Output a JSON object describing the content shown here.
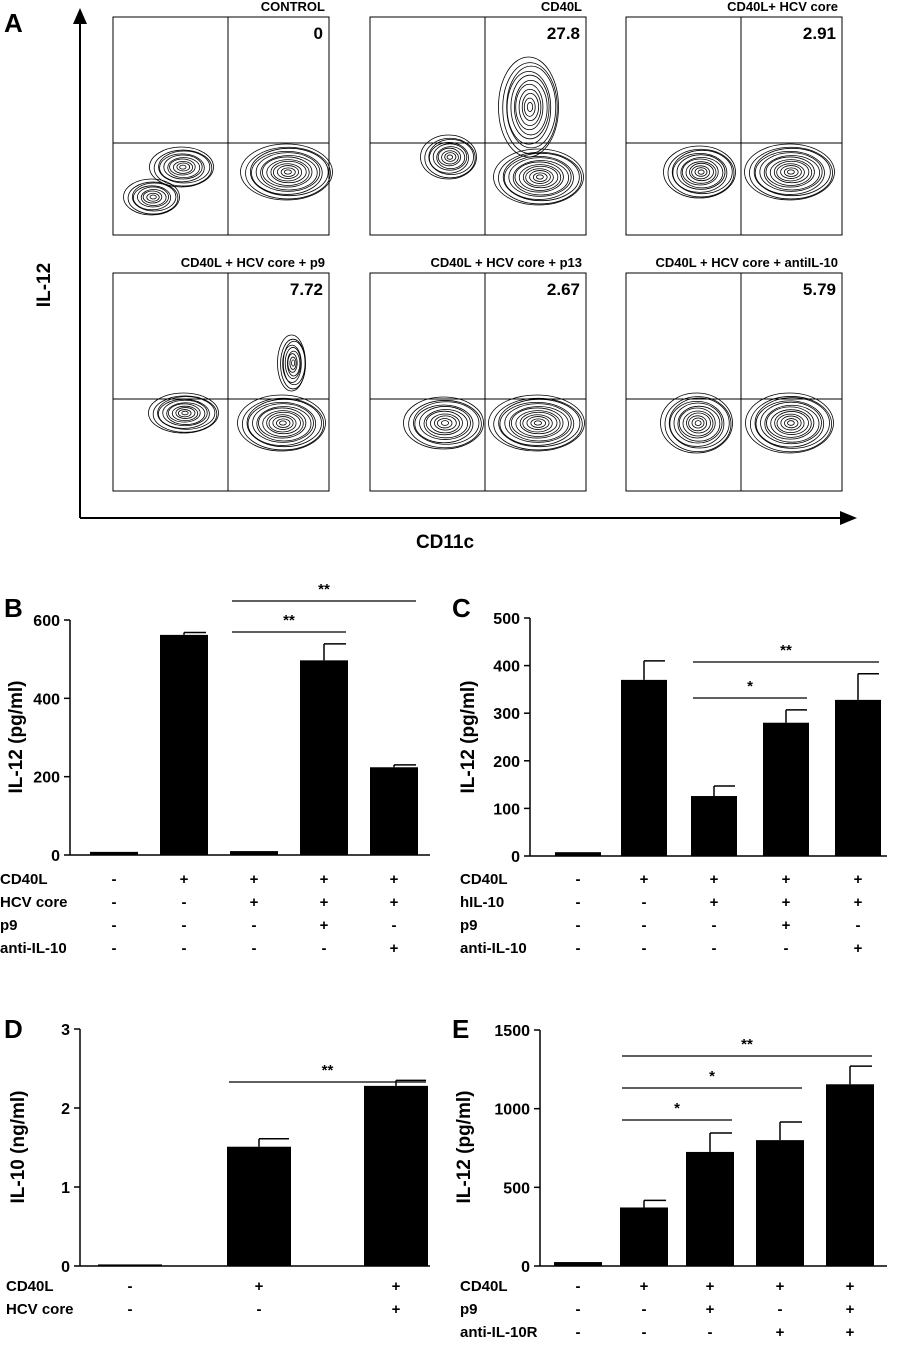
{
  "panel_letters": {
    "a": "A",
    "b": "B",
    "c": "C",
    "d": "D",
    "e": "E"
  },
  "colors": {
    "ink": "#000000",
    "background": "#ffffff"
  },
  "chart_data": [
    {
      "id": "A",
      "type": "scatter",
      "subtype": "flow cytometry contour plots",
      "xlabel": "CD11c",
      "ylabel": "IL-12",
      "plots": [
        {
          "title": "CONTROL",
          "value": "0"
        },
        {
          "title": "CD40L",
          "value": "27.8"
        },
        {
          "title": "CD40L+ HCV core",
          "value": "2.91"
        },
        {
          "title": "CD40L + HCV core + p9",
          "value": "7.72"
        },
        {
          "title": "CD40L + HCV core + p13",
          "value": "2.67"
        },
        {
          "title": "CD40L + HCV core + antiIL-10",
          "value": "5.79"
        }
      ]
    },
    {
      "id": "B",
      "type": "bar",
      "ylabel": "IL-12 (pg/ml)",
      "ylim": [
        0,
        600
      ],
      "yticks": [
        "0",
        "200",
        "400",
        "600"
      ],
      "values": [
        8,
        562,
        10,
        497,
        224
      ],
      "errors": [
        1,
        6,
        1,
        42,
        6
      ],
      "conditions": [
        {
          "label": "CD40L",
          "signs": [
            "-",
            "+",
            "+",
            "+",
            "+"
          ]
        },
        {
          "label": "HCV core",
          "signs": [
            "-",
            "-",
            "+",
            "+",
            "+"
          ]
        },
        {
          "label": "p9",
          "signs": [
            "-",
            "-",
            "-",
            "+",
            "-"
          ]
        },
        {
          "label": "anti-IL-10",
          "signs": [
            "-",
            "-",
            "-",
            "-",
            "+"
          ]
        }
      ],
      "significance": [
        {
          "from": 2,
          "to": 3,
          "label": "**"
        },
        {
          "from": 2,
          "to": 4,
          "label": "**"
        }
      ]
    },
    {
      "id": "C",
      "type": "bar",
      "ylabel": "IL-12 (pg/ml)",
      "ylim": [
        0,
        500
      ],
      "yticks": [
        "0",
        "100",
        "200",
        "300",
        "400",
        "500"
      ],
      "values": [
        8,
        370,
        126,
        280,
        328
      ],
      "errors": [
        1,
        40,
        21,
        27,
        55
      ],
      "conditions": [
        {
          "label": "CD40L",
          "signs": [
            "-",
            "+",
            "+",
            "+",
            "+"
          ]
        },
        {
          "label": "hIL-10",
          "signs": [
            "-",
            "-",
            "+",
            "+",
            "+"
          ]
        },
        {
          "label": "p9",
          "signs": [
            "-",
            "-",
            "-",
            "+",
            "-"
          ]
        },
        {
          "label": "anti-IL-10",
          "signs": [
            "-",
            "-",
            "-",
            "-",
            "+"
          ]
        }
      ],
      "significance": [
        {
          "from": 2,
          "to": 3,
          "label": "*"
        },
        {
          "from": 2,
          "to": 4,
          "label": "**"
        }
      ]
    },
    {
      "id": "D",
      "type": "bar",
      "ylabel": "IL-10 (ng/ml)",
      "ylim": [
        0,
        3
      ],
      "yticks": [
        "0",
        "1",
        "2",
        "3"
      ],
      "values": [
        0.02,
        1.51,
        2.28
      ],
      "errors": [
        0.01,
        0.1,
        0.07
      ],
      "conditions": [
        {
          "label": "CD40L",
          "signs": [
            "-",
            "+",
            "+"
          ]
        },
        {
          "label": "HCV core",
          "signs": [
            "-",
            "-",
            "+"
          ]
        }
      ],
      "significance": [
        {
          "from": 1,
          "to": 2,
          "label": "**"
        }
      ]
    },
    {
      "id": "E",
      "type": "bar",
      "ylabel": "IL-12 (pg/ml)",
      "ylim": [
        0,
        1500
      ],
      "yticks": [
        "0",
        "500",
        "1000",
        "1500"
      ],
      "values": [
        25,
        372,
        725,
        800,
        1155
      ],
      "errors": [
        5,
        45,
        120,
        115,
        115
      ],
      "conditions": [
        {
          "label": "CD40L",
          "signs": [
            "-",
            "+",
            "+",
            "+",
            "+"
          ]
        },
        {
          "label": "p9",
          "signs": [
            "-",
            "-",
            "+",
            "-",
            "+"
          ]
        },
        {
          "label": "anti-IL-10R",
          "signs": [
            "-",
            "-",
            "-",
            "+",
            "+"
          ]
        }
      ],
      "significance": [
        {
          "from": 1,
          "to": 2,
          "label": "*"
        },
        {
          "from": 1,
          "to": 3,
          "label": "*"
        },
        {
          "from": 1,
          "to": 4,
          "label": "**"
        }
      ]
    }
  ]
}
